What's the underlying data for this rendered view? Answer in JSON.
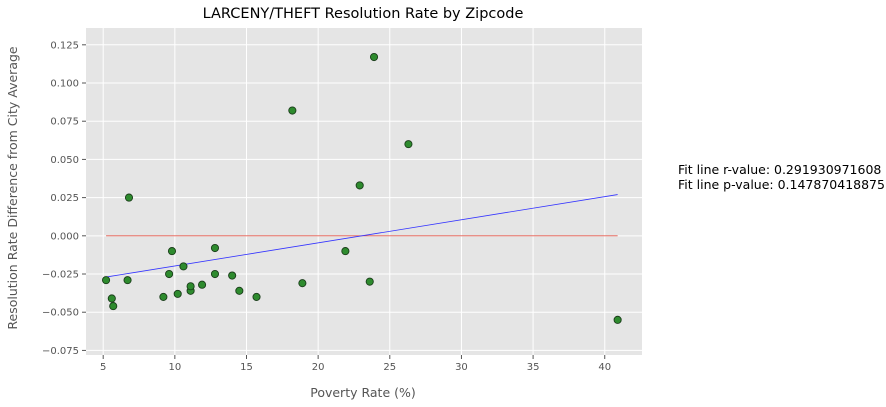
{
  "chart_data": {
    "type": "scatter",
    "title": "LARCENY/THEFT Resolution Rate by Zipcode",
    "xlabel": "Poverty Rate (%)",
    "ylabel": "Resolution Rate Difference from City Average",
    "xlim": [
      3.8,
      42.6
    ],
    "ylim": [
      -0.078,
      0.136
    ],
    "xticks": [
      5,
      10,
      15,
      20,
      25,
      30,
      35,
      40
    ],
    "yticks": [
      -0.075,
      -0.05,
      -0.025,
      0.0,
      0.025,
      0.05,
      0.075,
      0.1,
      0.125
    ],
    "ytick_labels": [
      "−0.075",
      "−0.050",
      "−0.025",
      "0.000",
      "0.025",
      "0.050",
      "0.075",
      "0.100",
      "0.125"
    ],
    "grid": true,
    "point_color": "#2e8b2e",
    "points": [
      {
        "x": 5.2,
        "y": -0.029
      },
      {
        "x": 5.6,
        "y": -0.041
      },
      {
        "x": 5.7,
        "y": -0.046
      },
      {
        "x": 6.7,
        "y": -0.029
      },
      {
        "x": 6.8,
        "y": 0.025
      },
      {
        "x": 9.2,
        "y": -0.04
      },
      {
        "x": 9.6,
        "y": -0.025
      },
      {
        "x": 9.8,
        "y": -0.01
      },
      {
        "x": 10.2,
        "y": -0.038
      },
      {
        "x": 10.6,
        "y": -0.02
      },
      {
        "x": 11.1,
        "y": -0.036
      },
      {
        "x": 11.1,
        "y": -0.033
      },
      {
        "x": 11.9,
        "y": -0.032
      },
      {
        "x": 12.8,
        "y": -0.025
      },
      {
        "x": 12.8,
        "y": -0.008
      },
      {
        "x": 14.0,
        "y": -0.026
      },
      {
        "x": 14.5,
        "y": -0.036
      },
      {
        "x": 15.7,
        "y": -0.04
      },
      {
        "x": 18.2,
        "y": 0.082
      },
      {
        "x": 18.9,
        "y": -0.031
      },
      {
        "x": 21.9,
        "y": -0.01
      },
      {
        "x": 22.9,
        "y": 0.033
      },
      {
        "x": 23.6,
        "y": -0.03
      },
      {
        "x": 23.9,
        "y": 0.117
      },
      {
        "x": 26.3,
        "y": 0.06
      },
      {
        "x": 40.9,
        "y": -0.055
      }
    ],
    "fit_line": {
      "color": "#3333ff",
      "x": [
        5.2,
        40.9
      ],
      "y": [
        -0.027,
        0.027
      ]
    },
    "zero_line": {
      "color": "#e55a4e",
      "x": [
        5.2,
        40.9
      ],
      "y": [
        0.0,
        0.0
      ]
    },
    "annotations": [
      "Fit line r-value: 0.291930971608",
      "Fit line p-value: 0.147870418875"
    ]
  }
}
